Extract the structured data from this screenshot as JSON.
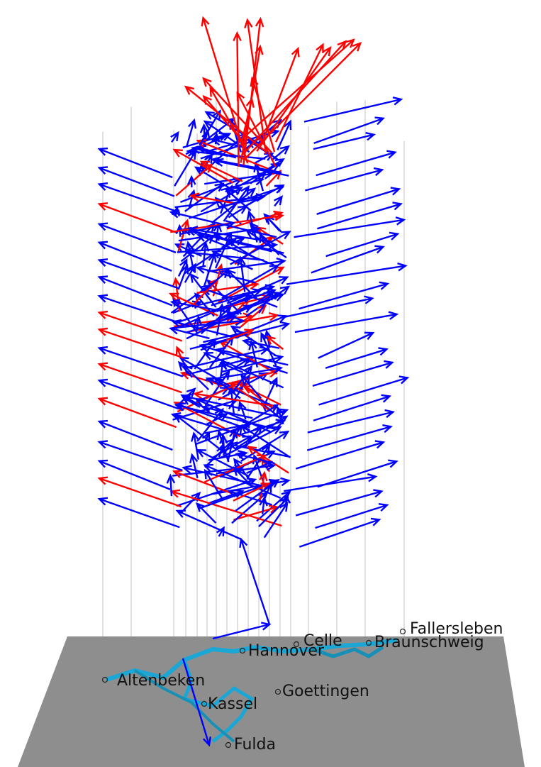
{
  "places": [
    "Celle",
    "Hannover",
    "Fallersleben",
    "Braunschweig",
    "Altenbeken",
    "Goettingen",
    "Kassel",
    "Fulda"
  ]
}
